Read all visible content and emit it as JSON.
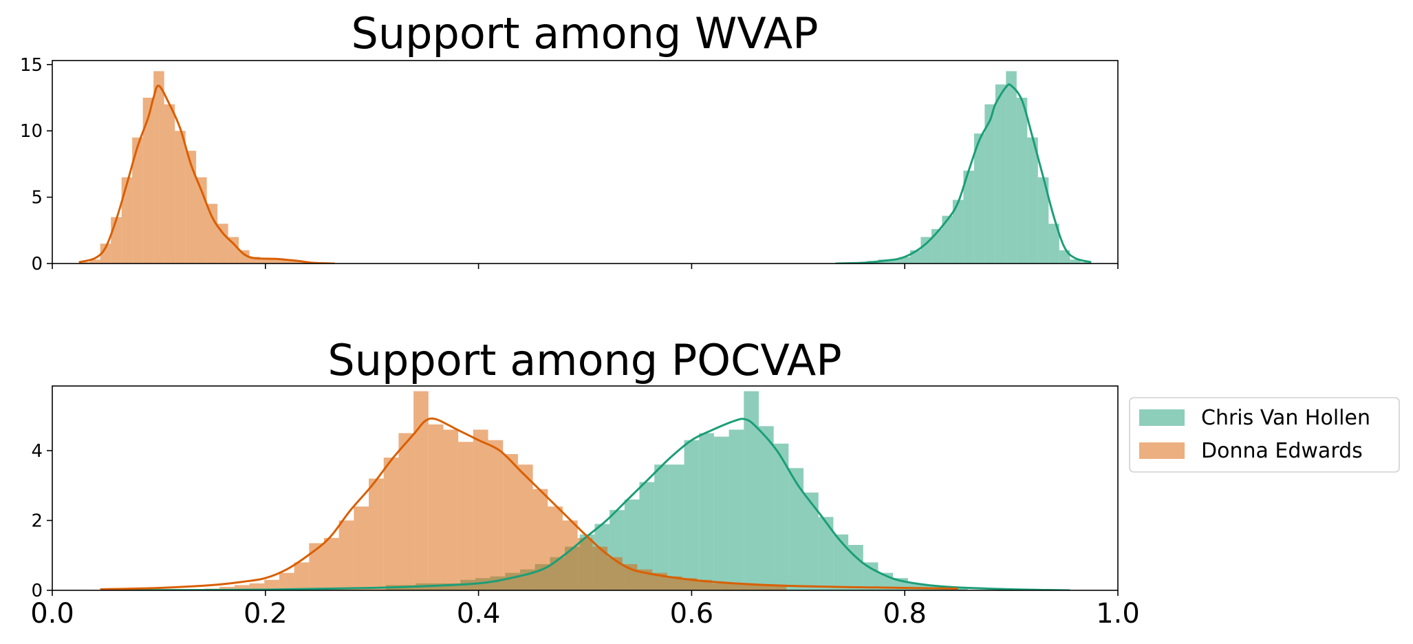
{
  "chart_data": [
    {
      "type": "histogram+kde",
      "title": "Support among WVAP",
      "xlim": [
        0.0,
        1.0
      ],
      "ylim": [
        0,
        15.3
      ],
      "yticks": [
        0,
        5,
        10,
        15
      ],
      "xticks": [
        0.0,
        0.2,
        0.4,
        0.6,
        0.8,
        1.0
      ],
      "xtick_labels_shown": false,
      "bin_width": 0.01,
      "series": [
        {
          "name": "Chris Van Hollen",
          "color": "#1b9e77",
          "fill": "#8ecfba",
          "hist": [
            [
              0.74,
              0.05
            ],
            [
              0.75,
              0.05
            ],
            [
              0.76,
              0.1
            ],
            [
              0.77,
              0.2
            ],
            [
              0.78,
              0.3
            ],
            [
              0.79,
              0.3
            ],
            [
              0.8,
              0.5
            ],
            [
              0.81,
              1.0
            ],
            [
              0.82,
              2.0
            ],
            [
              0.83,
              2.6
            ],
            [
              0.84,
              3.6
            ],
            [
              0.85,
              4.8
            ],
            [
              0.86,
              7.0
            ],
            [
              0.87,
              9.8
            ],
            [
              0.88,
              12.0
            ],
            [
              0.89,
              13.5
            ],
            [
              0.9,
              14.5
            ],
            [
              0.91,
              12.5
            ],
            [
              0.92,
              9.5
            ],
            [
              0.93,
              6.5
            ],
            [
              0.94,
              3.0
            ],
            [
              0.95,
              1.0
            ],
            [
              0.96,
              0.3
            ],
            [
              0.97,
              0.1
            ]
          ],
          "kde": [
            [
              0.735,
              0.0
            ],
            [
              0.76,
              0.05
            ],
            [
              0.78,
              0.2
            ],
            [
              0.8,
              0.5
            ],
            [
              0.82,
              1.5
            ],
            [
              0.84,
              3.3
            ],
            [
              0.85,
              4.6
            ],
            [
              0.86,
              7.0
            ],
            [
              0.87,
              9.3
            ],
            [
              0.88,
              10.8
            ],
            [
              0.885,
              12.0
            ],
            [
              0.895,
              13.3
            ],
            [
              0.9,
              13.4
            ],
            [
              0.91,
              12.3
            ],
            [
              0.92,
              9.5
            ],
            [
              0.93,
              6.5
            ],
            [
              0.94,
              3.5
            ],
            [
              0.95,
              1.2
            ],
            [
              0.96,
              0.4
            ],
            [
              0.975,
              0.1
            ]
          ]
        },
        {
          "name": "Donna Edwards",
          "color": "#d95f02",
          "fill": "#ebad7e",
          "hist": [
            [
              0.03,
              0.1
            ],
            [
              0.04,
              0.3
            ],
            [
              0.05,
              1.5
            ],
            [
              0.06,
              3.5
            ],
            [
              0.07,
              6.5
            ],
            [
              0.08,
              9.5
            ],
            [
              0.09,
              12.5
            ],
            [
              0.1,
              14.5
            ],
            [
              0.11,
              12.0
            ],
            [
              0.12,
              10.0
            ],
            [
              0.13,
              8.5
            ],
            [
              0.14,
              6.5
            ],
            [
              0.15,
              4.5
            ],
            [
              0.16,
              3.0
            ],
            [
              0.17,
              2.0
            ],
            [
              0.18,
              1.0
            ],
            [
              0.19,
              0.5
            ],
            [
              0.2,
              0.3
            ],
            [
              0.21,
              0.3
            ],
            [
              0.22,
              0.3
            ],
            [
              0.23,
              0.2
            ],
            [
              0.24,
              0.1
            ],
            [
              0.25,
              0.05
            ]
          ],
          "kde": [
            [
              0.025,
              0.1
            ],
            [
              0.04,
              0.4
            ],
            [
              0.05,
              1.2
            ],
            [
              0.06,
              3.3
            ],
            [
              0.07,
              6.0
            ],
            [
              0.08,
              8.8
            ],
            [
              0.09,
              11.0
            ],
            [
              0.095,
              12.5
            ],
            [
              0.1,
              13.4
            ],
            [
              0.11,
              12.0
            ],
            [
              0.12,
              10.2
            ],
            [
              0.13,
              7.5
            ],
            [
              0.14,
              5.5
            ],
            [
              0.15,
              3.5
            ],
            [
              0.16,
              2.3
            ],
            [
              0.17,
              1.5
            ],
            [
              0.18,
              0.7
            ],
            [
              0.19,
              0.4
            ],
            [
              0.21,
              0.35
            ],
            [
              0.23,
              0.2
            ],
            [
              0.245,
              0.05
            ],
            [
              0.265,
              0.0
            ]
          ]
        }
      ]
    },
    {
      "type": "histogram+kde",
      "title": "Support among POCVAP",
      "xlim": [
        0.0,
        1.0
      ],
      "ylim": [
        0,
        5.85
      ],
      "yticks": [
        0,
        2,
        4
      ],
      "xticks": [
        0.0,
        0.2,
        0.4,
        0.6,
        0.8,
        1.0
      ],
      "xtick_labels": [
        "0.0",
        "0.2",
        "0.4",
        "0.6",
        "0.8",
        "1.0"
      ],
      "xtick_labels_shown": true,
      "bin_width": 0.014,
      "legend": {
        "placement": "right",
        "entries": [
          "Chris Van Hollen",
          "Donna Edwards"
        ]
      },
      "series": [
        {
          "name": "Chris Van Hollen",
          "color": "#1b9e77",
          "fill": "#8ecfba",
          "hist": [
            [
              0.32,
              0.15
            ],
            [
              0.334,
              0.15
            ],
            [
              0.348,
              0.2
            ],
            [
              0.362,
              0.2
            ],
            [
              0.376,
              0.2
            ],
            [
              0.39,
              0.3
            ],
            [
              0.404,
              0.35
            ],
            [
              0.418,
              0.4
            ],
            [
              0.432,
              0.5
            ],
            [
              0.446,
              0.6
            ],
            [
              0.46,
              0.75
            ],
            [
              0.474,
              0.95
            ],
            [
              0.488,
              1.25
            ],
            [
              0.502,
              1.6
            ],
            [
              0.516,
              1.9
            ],
            [
              0.53,
              2.3
            ],
            [
              0.544,
              2.6
            ],
            [
              0.558,
              3.1
            ],
            [
              0.572,
              3.6
            ],
            [
              0.586,
              3.6
            ],
            [
              0.6,
              4.3
            ],
            [
              0.614,
              4.5
            ],
            [
              0.628,
              4.4
            ],
            [
              0.642,
              4.6
            ],
            [
              0.656,
              5.7
            ],
            [
              0.67,
              4.7
            ],
            [
              0.684,
              4.2
            ],
            [
              0.698,
              3.5
            ],
            [
              0.712,
              2.8
            ],
            [
              0.726,
              2.1
            ],
            [
              0.74,
              1.6
            ],
            [
              0.754,
              1.3
            ],
            [
              0.768,
              0.8
            ],
            [
              0.782,
              0.5
            ],
            [
              0.796,
              0.35
            ],
            [
              0.81,
              0.2
            ],
            [
              0.824,
              0.15
            ],
            [
              0.838,
              0.1
            ],
            [
              0.852,
              0.05
            ]
          ],
          "kde": [
            [
              0.05,
              0.0
            ],
            [
              0.2,
              0.02
            ],
            [
              0.3,
              0.07
            ],
            [
              0.35,
              0.12
            ],
            [
              0.4,
              0.2
            ],
            [
              0.43,
              0.35
            ],
            [
              0.46,
              0.6
            ],
            [
              0.48,
              1.0
            ],
            [
              0.5,
              1.5
            ],
            [
              0.52,
              2.0
            ],
            [
              0.54,
              2.6
            ],
            [
              0.56,
              3.2
            ],
            [
              0.58,
              3.8
            ],
            [
              0.6,
              4.3
            ],
            [
              0.62,
              4.6
            ],
            [
              0.64,
              4.85
            ],
            [
              0.65,
              4.9
            ],
            [
              0.66,
              4.7
            ],
            [
              0.68,
              4.0
            ],
            [
              0.7,
              3.0
            ],
            [
              0.72,
              2.2
            ],
            [
              0.74,
              1.4
            ],
            [
              0.76,
              0.8
            ],
            [
              0.78,
              0.45
            ],
            [
              0.8,
              0.25
            ],
            [
              0.84,
              0.1
            ],
            [
              0.9,
              0.03
            ],
            [
              0.955,
              0.0
            ]
          ]
        },
        {
          "name": "Donna Edwards",
          "color": "#d95f02",
          "fill": "#ebad7e",
          "hist": [
            [
              0.15,
              0.05
            ],
            [
              0.164,
              0.1
            ],
            [
              0.178,
              0.15
            ],
            [
              0.192,
              0.2
            ],
            [
              0.206,
              0.3
            ],
            [
              0.22,
              0.5
            ],
            [
              0.234,
              0.8
            ],
            [
              0.248,
              1.35
            ],
            [
              0.262,
              1.5
            ],
            [
              0.276,
              2.0
            ],
            [
              0.29,
              2.4
            ],
            [
              0.304,
              3.2
            ],
            [
              0.318,
              3.8
            ],
            [
              0.332,
              4.5
            ],
            [
              0.346,
              5.7
            ],
            [
              0.36,
              4.75
            ],
            [
              0.374,
              4.6
            ],
            [
              0.388,
              4.25
            ],
            [
              0.402,
              4.6
            ],
            [
              0.416,
              4.3
            ],
            [
              0.43,
              3.9
            ],
            [
              0.444,
              3.6
            ],
            [
              0.458,
              2.9
            ],
            [
              0.472,
              2.4
            ],
            [
              0.486,
              2.0
            ],
            [
              0.5,
              1.5
            ],
            [
              0.514,
              1.25
            ],
            [
              0.528,
              0.95
            ],
            [
              0.542,
              0.75
            ],
            [
              0.556,
              0.6
            ],
            [
              0.57,
              0.5
            ],
            [
              0.584,
              0.4
            ],
            [
              0.598,
              0.35
            ],
            [
              0.612,
              0.3
            ],
            [
              0.626,
              0.2
            ],
            [
              0.64,
              0.2
            ],
            [
              0.654,
              0.2
            ],
            [
              0.668,
              0.15
            ],
            [
              0.682,
              0.15
            ]
          ],
          "kde": [
            [
              0.045,
              0.03
            ],
            [
              0.1,
              0.07
            ],
            [
              0.15,
              0.15
            ],
            [
              0.18,
              0.25
            ],
            [
              0.2,
              0.35
            ],
            [
              0.22,
              0.6
            ],
            [
              0.24,
              1.0
            ],
            [
              0.26,
              1.5
            ],
            [
              0.28,
              2.3
            ],
            [
              0.3,
              3.0
            ],
            [
              0.32,
              3.8
            ],
            [
              0.34,
              4.5
            ],
            [
              0.35,
              4.85
            ],
            [
              0.36,
              4.9
            ],
            [
              0.38,
              4.6
            ],
            [
              0.4,
              4.3
            ],
            [
              0.42,
              4.0
            ],
            [
              0.44,
              3.4
            ],
            [
              0.46,
              2.8
            ],
            [
              0.48,
              2.2
            ],
            [
              0.5,
              1.6
            ],
            [
              0.52,
              1.05
            ],
            [
              0.54,
              0.65
            ],
            [
              0.56,
              0.48
            ],
            [
              0.6,
              0.3
            ],
            [
              0.64,
              0.2
            ],
            [
              0.7,
              0.12
            ],
            [
              0.8,
              0.07
            ],
            [
              0.85,
              0.05
            ]
          ]
        }
      ]
    }
  ]
}
